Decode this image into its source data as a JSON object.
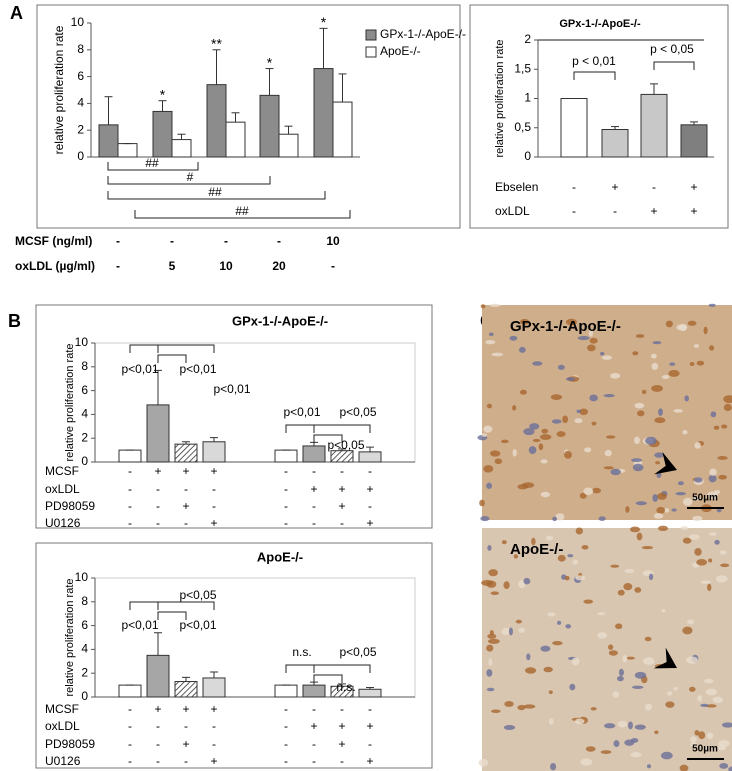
{
  "panel_labels": [
    "A",
    "B",
    "C"
  ],
  "chart_data": [
    {
      "type": "bar",
      "y_label": "relative proliferation rate",
      "ylim": [
        0,
        10
      ],
      "yticks": [
        0,
        2,
        4,
        6,
        8,
        10
      ],
      "series": [
        {
          "name": "GPx-1-/-ApoE-/-",
          "color": "#8c8c8c",
          "values": [
            2.4,
            3.4,
            5.4,
            4.6,
            6.6
          ],
          "errors": [
            2.1,
            0.8,
            2.6,
            2.0,
            3.0
          ],
          "significance": [
            null,
            "*",
            "**",
            "*",
            "*"
          ]
        },
        {
          "name": "ApoE-/-",
          "color": "#ffffff",
          "values": [
            1.0,
            1.3,
            2.6,
            1.7,
            4.1
          ],
          "errors": [
            0,
            0.4,
            0.7,
            0.6,
            2.1
          ]
        }
      ],
      "comparisons": [
        "##",
        "#",
        "##",
        "##"
      ],
      "conditions": [
        {
          "name": "MCSF (ng/ml)",
          "values": [
            "-",
            "-",
            "-",
            "-",
            "10"
          ]
        },
        {
          "name": "oxLDL (µg/ml)",
          "values": [
            "-",
            "5",
            "10",
            "20",
            "-"
          ]
        }
      ]
    },
    {
      "type": "bar",
      "title": "GPx-1-/-ApoE-/-",
      "y_label": "relative proliferation rate",
      "ylim": [
        0,
        2
      ],
      "yticks": [
        0,
        {
          "value": 0.5,
          "label": "0,5"
        },
        1,
        {
          "value": 1.5,
          "label": "1,5"
        },
        2
      ],
      "values": [
        1.0,
        0.47,
        1.07,
        0.55
      ],
      "errors": [
        0,
        0.05,
        0.18,
        0.05
      ],
      "colors": [
        "#ffffff",
        "#c8c8c8",
        "#c8c8c8",
        "#7f7f7f"
      ],
      "comparisons": [
        "p < 0,01",
        "p < 0,05"
      ],
      "conditions": [
        {
          "name": "Ebselen",
          "values": [
            "-",
            "+",
            "-",
            "+"
          ]
        },
        {
          "name": "oxLDL",
          "values": [
            "-",
            "-",
            "+",
            "+"
          ]
        }
      ]
    },
    {
      "type": "bar",
      "title": "GPx-1-/-ApoE-/-",
      "y_label": "relative proliferation rate",
      "ylim": [
        0,
        10
      ],
      "yticks": [
        0,
        2,
        4,
        6,
        8,
        10
      ],
      "values": [
        1.0,
        4.8,
        1.5,
        1.7,
        1.0,
        1.35,
        0.95,
        0.85
      ],
      "errors": [
        0,
        2.9,
        0.2,
        0.35,
        0,
        0.3,
        0.15,
        0.4
      ],
      "colors": [
        "#ffffff",
        "#a6a6a6",
        "#ffffff",
        "#d9d9d9",
        "#ffffff",
        "#a6a6a6",
        "#ffffff",
        "#d9d9d9"
      ],
      "hatched": [
        false,
        false,
        true,
        false,
        false,
        false,
        true,
        false
      ],
      "comparisons": [
        "p<0,01",
        "p<0,01",
        "p<0,01",
        "p<0,01",
        "p<0,05",
        "p<0,05"
      ],
      "conditions": [
        {
          "name": "MCSF",
          "values": [
            "-",
            "+",
            "+",
            "+",
            "-",
            "-",
            "-",
            "-"
          ]
        },
        {
          "name": "oxLDL",
          "values": [
            "-",
            "-",
            "-",
            "-",
            "-",
            "+",
            "+",
            "+"
          ]
        },
        {
          "name": "PD98059",
          "values": [
            "-",
            "-",
            "+",
            "-",
            "-",
            "-",
            "+",
            "-"
          ]
        },
        {
          "name": "U0126",
          "values": [
            "-",
            "-",
            "-",
            "+",
            "-",
            "-",
            "-",
            "+"
          ]
        }
      ]
    },
    {
      "type": "bar",
      "title": "ApoE-/-",
      "y_label": "relative proliferation rate",
      "ylim": [
        0,
        10
      ],
      "yticks": [
        0,
        2,
        4,
        6,
        8,
        10
      ],
      "values": [
        1.0,
        3.5,
        1.3,
        1.6,
        1.0,
        1.0,
        0.9,
        0.65
      ],
      "errors": [
        0,
        1.9,
        0.35,
        0.5,
        0,
        0.25,
        0.2,
        0.15
      ],
      "colors": [
        "#ffffff",
        "#a6a6a6",
        "#ffffff",
        "#d9d9d9",
        "#ffffff",
        "#a6a6a6",
        "#ffffff",
        "#d9d9d9"
      ],
      "hatched": [
        false,
        false,
        true,
        false,
        false,
        false,
        true,
        false
      ],
      "comparisons": [
        "p<0,01",
        "p<0,05",
        "p<0,01",
        "n.s.",
        "p<0,05",
        "n.s."
      ],
      "conditions": [
        {
          "name": "MCSF",
          "values": [
            "-",
            "+",
            "+",
            "+",
            "-",
            "-",
            "-",
            "-"
          ]
        },
        {
          "name": "oxLDL",
          "values": [
            "-",
            "-",
            "-",
            "-",
            "-",
            "+",
            "+",
            "+"
          ]
        },
        {
          "name": "PD98059",
          "values": [
            "-",
            "-",
            "+",
            "-",
            "-",
            "-",
            "+",
            "-"
          ]
        },
        {
          "name": "U0126",
          "values": [
            "-",
            "-",
            "-",
            "+",
            "-",
            "-",
            "-",
            "+"
          ]
        }
      ]
    }
  ],
  "micrographs": [
    {
      "label": "GPx-1-/-ApoE-/-",
      "scale_bar": "50µm"
    },
    {
      "label": "ApoE-/-",
      "scale_bar": "50µm"
    }
  ]
}
